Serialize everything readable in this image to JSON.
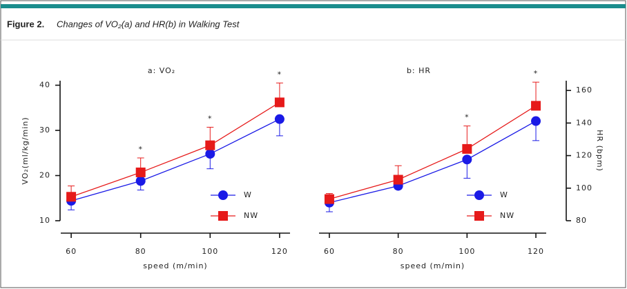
{
  "figure": {
    "label": "Figure 2.",
    "caption": "Changes of VO₂(a) and HR(b) in Walking Test"
  },
  "chart_data": [
    {
      "type": "line",
      "title": "a: VO₂",
      "x_label": "speed (m/min)",
      "y_label": "VO₂(ml/kg/min)",
      "x": [
        60,
        80,
        100,
        120
      ],
      "xlim": [
        57,
        123
      ],
      "xticks": [
        60,
        80,
        100,
        120
      ],
      "ylim": [
        10,
        41
      ],
      "yticks": [
        10,
        20,
        30,
        40
      ],
      "y_axis_side": "left",
      "legend": "lower right",
      "series": [
        {
          "name": "W",
          "color": "#1a1ae6",
          "marker": "circle",
          "values": [
            14.4,
            18.8,
            24.8,
            32.5
          ],
          "errors": [
            2,
            2,
            3.3,
            3.7
          ],
          "error_direction": "down"
        },
        {
          "name": "NW",
          "color": "#e61a1a",
          "marker": "square",
          "values": [
            15.3,
            20.7,
            26.7,
            36.2
          ],
          "errors": [
            2.4,
            3.2,
            4.0,
            4.3
          ],
          "error_direction": "up"
        }
      ],
      "annotations": [
        {
          "x": 80,
          "text": "*"
        },
        {
          "x": 100,
          "text": "*"
        },
        {
          "x": 120,
          "text": "*"
        }
      ]
    },
    {
      "type": "line",
      "title": "b: HR",
      "x_label": "speed (m/min)",
      "y_label": "HR (bpm)",
      "x": [
        60,
        80,
        100,
        120
      ],
      "xlim": [
        57,
        123
      ],
      "xticks": [
        60,
        80,
        100,
        120
      ],
      "ylim": [
        80,
        166
      ],
      "yticks": [
        80,
        100,
        120,
        140,
        160
      ],
      "y_axis_side": "right",
      "legend": "lower right",
      "series": [
        {
          "name": "W",
          "color": "#1a1ae6",
          "marker": "circle",
          "values": [
            91.1,
            101.4,
            117.6,
            141.2
          ],
          "errors": [
            5.6,
            2,
            11.5,
            12
          ],
          "error_direction": "down"
        },
        {
          "name": "NW",
          "color": "#e61a1a",
          "marker": "square",
          "values": [
            93.3,
            105.2,
            124.1,
            150.6
          ],
          "errors": [
            3.4,
            8.6,
            14.1,
            14.5
          ],
          "error_direction": "up"
        }
      ],
      "annotations": [
        {
          "x": 100,
          "text": "*"
        },
        {
          "x": 120,
          "text": "*"
        }
      ]
    }
  ]
}
